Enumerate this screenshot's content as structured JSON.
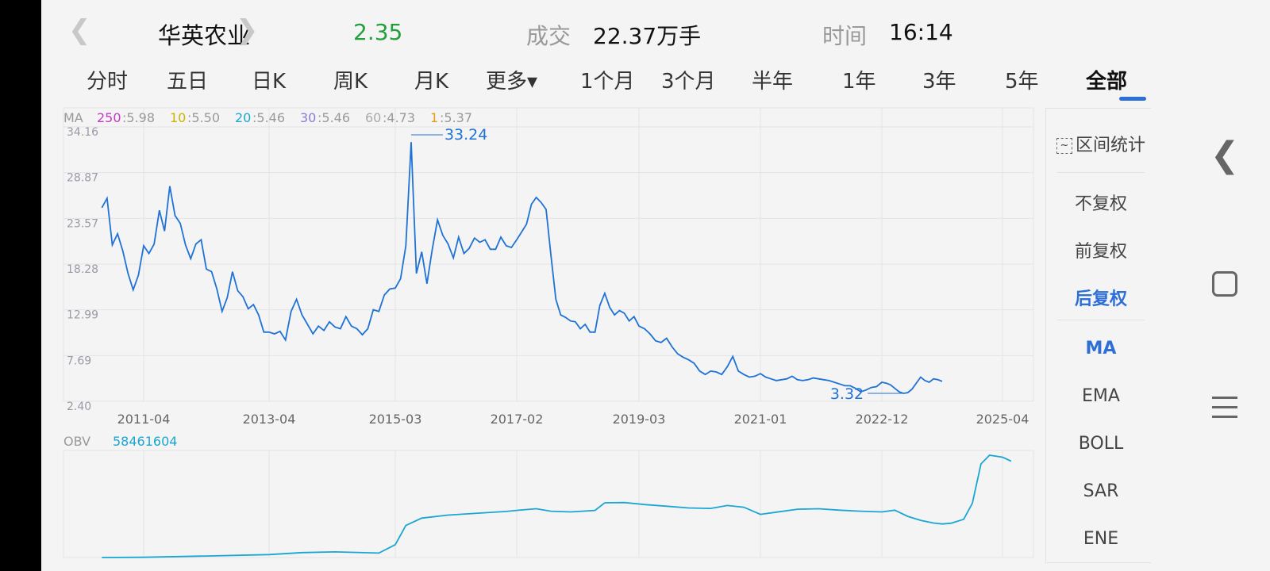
{
  "header": {
    "prev_icon": "chevron-left-icon",
    "name": "华英农业",
    "next_icon": "chevron-right-icon",
    "price": "2.35",
    "volume_label": "成交",
    "volume_value": "22.37万手",
    "time_label": "时间",
    "time_value": "16:14",
    "close_icon": "close-icon"
  },
  "period_tabs": [
    "分时",
    "五日",
    "日K",
    "周K",
    "月K",
    "更多▾",
    "1个月",
    "3个月",
    "半年",
    "1年",
    "3年",
    "5年",
    "全部"
  ],
  "active_tab": "全部",
  "side_panel": {
    "range_stats": "区间统计",
    "adjust_options": [
      "不复权",
      "前复权",
      "后复权"
    ],
    "active_adjust": "后复权",
    "indicators": [
      "MA",
      "EMA",
      "BOLL",
      "SAR",
      "ENE"
    ],
    "active_indicator": "MA"
  },
  "chart_data": [
    {
      "type": "line",
      "ma_legend": [
        {
          "label": "MA",
          "color": "#999999"
        },
        {
          "label": "250",
          "value": "5.98",
          "color": "#c43ac4"
        },
        {
          "label": "10",
          "value": "5.50",
          "color": "#c9b400"
        },
        {
          "label": "20",
          "value": "5.46",
          "color": "#1aa6d4"
        },
        {
          "label": "30",
          "value": "5.46",
          "color": "#8c7bd6"
        },
        {
          "label": "60",
          "value": "4.73",
          "color": "#aaaaaa"
        },
        {
          "label": "1",
          "value": "5.37",
          "color": "#e79a1e"
        }
      ],
      "y_ticks": [
        "34.16",
        "28.87",
        "23.57",
        "18.28",
        "12.99",
        "7.69",
        "2.40"
      ],
      "ylim": [
        2.4,
        34.16
      ],
      "x_ticks": [
        "2011-04",
        "2013-04",
        "2015-03",
        "2017-02",
        "2019-03",
        "2021-01",
        "2022-12",
        "2025-04"
      ],
      "annotations": [
        {
          "label": "33.24",
          "kind": "max"
        },
        {
          "label": "3.32",
          "kind": "min"
        }
      ],
      "series": [
        {
          "color": "#1f72d6",
          "points": [
            [
              "2010-08",
              24.8
            ],
            [
              "2010-09",
              25.9
            ],
            [
              "2010-10",
              20.5
            ],
            [
              "2010-11",
              21.8
            ],
            [
              "2010-12",
              19.8
            ],
            [
              "2011-01",
              17.2
            ],
            [
              "2011-02",
              15.3
            ],
            [
              "2011-03",
              17.0
            ],
            [
              "2011-04",
              20.4
            ],
            [
              "2011-05",
              19.5
            ],
            [
              "2011-06",
              20.6
            ],
            [
              "2011-07",
              24.5
            ],
            [
              "2011-08",
              22.1
            ],
            [
              "2011-09",
              27.3
            ],
            [
              "2011-10",
              23.9
            ],
            [
              "2011-11",
              23.0
            ],
            [
              "2011-12",
              20.5
            ],
            [
              "2012-01",
              18.9
            ],
            [
              "2012-02",
              20.6
            ],
            [
              "2012-03",
              21.1
            ],
            [
              "2012-04",
              17.7
            ],
            [
              "2012-05",
              17.4
            ],
            [
              "2012-06",
              15.4
            ],
            [
              "2012-07",
              12.8
            ],
            [
              "2012-08",
              14.4
            ],
            [
              "2012-09",
              17.4
            ],
            [
              "2012-10",
              15.2
            ],
            [
              "2012-11",
              14.5
            ],
            [
              "2012-12",
              13.1
            ],
            [
              "2013-01",
              13.6
            ],
            [
              "2013-02",
              12.4
            ],
            [
              "2013-03",
              10.4
            ],
            [
              "2013-04",
              10.4
            ],
            [
              "2013-05",
              10.2
            ],
            [
              "2013-06",
              10.5
            ],
            [
              "2013-07",
              9.5
            ],
            [
              "2013-08",
              12.8
            ],
            [
              "2013-09",
              14.2
            ],
            [
              "2013-10",
              12.4
            ],
            [
              "2013-11",
              11.3
            ],
            [
              "2013-12",
              10.2
            ],
            [
              "2014-01",
              11.1
            ],
            [
              "2014-02",
              10.6
            ],
            [
              "2014-03",
              11.6
            ],
            [
              "2014-04",
              11.0
            ],
            [
              "2014-05",
              10.8
            ],
            [
              "2014-06",
              12.2
            ],
            [
              "2014-07",
              11.1
            ],
            [
              "2014-08",
              10.8
            ],
            [
              "2014-09",
              10.1
            ],
            [
              "2014-10",
              10.8
            ],
            [
              "2014-11",
              13.0
            ],
            [
              "2014-12",
              12.8
            ],
            [
              "2015-01",
              14.7
            ],
            [
              "2015-02",
              15.4
            ],
            [
              "2015-03",
              15.5
            ],
            [
              "2015-04",
              16.6
            ],
            [
              "2015-05",
              20.4
            ],
            [
              "2015-06",
              32.4
            ],
            [
              "2015-07",
              17.2
            ],
            [
              "2015-08",
              19.7
            ],
            [
              "2015-09",
              16.0
            ],
            [
              "2015-10",
              20.0
            ],
            [
              "2015-11",
              23.4
            ],
            [
              "2015-12",
              21.6
            ],
            [
              "2016-01",
              20.6
            ],
            [
              "2016-02",
              19.0
            ],
            [
              "2016-03",
              21.4
            ],
            [
              "2016-04",
              19.5
            ],
            [
              "2016-05",
              20.1
            ],
            [
              "2016-06",
              21.3
            ],
            [
              "2016-07",
              20.8
            ],
            [
              "2016-08",
              21.1
            ],
            [
              "2016-09",
              20.0
            ],
            [
              "2016-10",
              20.0
            ],
            [
              "2016-11",
              21.4
            ],
            [
              "2016-12",
              20.4
            ],
            [
              "2017-01",
              20.2
            ],
            [
              "2017-02",
              21.1
            ],
            [
              "2017-03",
              22.0
            ],
            [
              "2017-04",
              22.9
            ],
            [
              "2017-05",
              25.2
            ],
            [
              "2017-06",
              26.0
            ],
            [
              "2017-07",
              25.4
            ],
            [
              "2017-08",
              24.6
            ],
            [
              "2017-09",
              19.3
            ],
            [
              "2017-10",
              14.2
            ],
            [
              "2017-11",
              12.4
            ],
            [
              "2017-12",
              12.1
            ],
            [
              "2018-01",
              11.7
            ],
            [
              "2018-02",
              11.6
            ],
            [
              "2018-03",
              10.8
            ],
            [
              "2018-04",
              11.3
            ],
            [
              "2018-05",
              10.4
            ],
            [
              "2018-06",
              10.4
            ],
            [
              "2018-07",
              13.5
            ],
            [
              "2018-08",
              14.9
            ],
            [
              "2018-09",
              13.3
            ],
            [
              "2018-10",
              12.4
            ],
            [
              "2018-11",
              12.9
            ],
            [
              "2018-12",
              12.6
            ],
            [
              "2019-01",
              11.7
            ],
            [
              "2019-02",
              12.2
            ],
            [
              "2019-03",
              11.1
            ],
            [
              "2019-04",
              10.8
            ],
            [
              "2019-05",
              10.2
            ],
            [
              "2019-06",
              9.4
            ],
            [
              "2019-07",
              9.2
            ],
            [
              "2019-08",
              9.7
            ],
            [
              "2019-09",
              8.7
            ],
            [
              "2019-10",
              7.9
            ],
            [
              "2019-11",
              7.5
            ],
            [
              "2019-12",
              7.2
            ],
            [
              "2020-01",
              6.8
            ],
            [
              "2020-02",
              5.9
            ],
            [
              "2020-03",
              5.5
            ],
            [
              "2020-04",
              5.9
            ],
            [
              "2020-05",
              5.8
            ],
            [
              "2020-06",
              5.5
            ],
            [
              "2020-07",
              6.4
            ],
            [
              "2020-08",
              7.6
            ],
            [
              "2020-09",
              5.9
            ],
            [
              "2020-10",
              5.5
            ],
            [
              "2020-11",
              5.2
            ],
            [
              "2020-12",
              5.3
            ],
            [
              "2021-01",
              5.6
            ],
            [
              "2021-02",
              5.2
            ],
            [
              "2021-03",
              5.0
            ],
            [
              "2021-04",
              4.8
            ],
            [
              "2021-05",
              4.9
            ],
            [
              "2021-06",
              5.0
            ],
            [
              "2021-07",
              5.3
            ],
            [
              "2021-08",
              4.9
            ],
            [
              "2021-09",
              4.8
            ],
            [
              "2021-10",
              4.9
            ],
            [
              "2021-11",
              5.1
            ],
            [
              "2021-12",
              5.0
            ],
            [
              "2022-01",
              4.9
            ],
            [
              "2022-02",
              4.8
            ],
            [
              "2022-03",
              4.6
            ],
            [
              "2022-04",
              4.4
            ],
            [
              "2022-05",
              4.2
            ],
            [
              "2022-06",
              4.2
            ],
            [
              "2022-07",
              3.9
            ],
            [
              "2022-08",
              3.5
            ],
            [
              "2022-09",
              3.7
            ],
            [
              "2022-10",
              4.0
            ],
            [
              "2022-11",
              4.1
            ],
            [
              "2022-12",
              4.6
            ],
            [
              "2023-01",
              4.5
            ],
            [
              "2023-02",
              4.3
            ],
            [
              "2023-03",
              3.9
            ],
            [
              "2023-04",
              3.5
            ],
            [
              "2023-05",
              3.32
            ],
            [
              "2023-06",
              3.4
            ],
            [
              "2023-07",
              3.8
            ],
            [
              "2023-08",
              4.5
            ],
            [
              "2023-09",
              5.2
            ],
            [
              "2023-10",
              4.8
            ],
            [
              "2023-11",
              4.6
            ],
            [
              "2023-12",
              5.0
            ],
            [
              "2024-01",
              4.9
            ],
            [
              "2024-02",
              4.7
            ]
          ]
        }
      ]
    },
    {
      "type": "line",
      "indicator": "OBV",
      "value": "58461604",
      "series": [
        {
          "color": "#1aa6d4",
          "points": [
            [
              "2010-08",
              0.0
            ],
            [
              "2011-04",
              0.1
            ],
            [
              "2012-04",
              0.6
            ],
            [
              "2013-04",
              1.2
            ],
            [
              "2013-10",
              2.0
            ],
            [
              "2014-04",
              2.3
            ],
            [
              "2014-12",
              1.8
            ],
            [
              "2015-03",
              5.2
            ],
            [
              "2015-05",
              13.0
            ],
            [
              "2015-08",
              16.0
            ],
            [
              "2016-01",
              17.2
            ],
            [
              "2016-06",
              17.9
            ],
            [
              "2016-12",
              18.7
            ],
            [
              "2017-03",
              19.3
            ],
            [
              "2017-06",
              19.8
            ],
            [
              "2017-09",
              18.8
            ],
            [
              "2018-01",
              18.5
            ],
            [
              "2018-06",
              19.1
            ],
            [
              "2018-08",
              22.2
            ],
            [
              "2018-12",
              22.3
            ],
            [
              "2019-04",
              21.5
            ],
            [
              "2019-08",
              20.8
            ],
            [
              "2019-12",
              20.1
            ],
            [
              "2020-04",
              19.9
            ],
            [
              "2020-07",
              21.1
            ],
            [
              "2020-10",
              20.4
            ],
            [
              "2021-01",
              17.5
            ],
            [
              "2021-04",
              18.4
            ],
            [
              "2021-08",
              19.6
            ],
            [
              "2021-12",
              19.8
            ],
            [
              "2022-04",
              19.2
            ],
            [
              "2022-08",
              18.8
            ],
            [
              "2022-12",
              18.5
            ],
            [
              "2023-03",
              19.2
            ],
            [
              "2023-06",
              16.7
            ],
            [
              "2023-09",
              15.1
            ],
            [
              "2023-12",
              14.0
            ],
            [
              "2024-02",
              13.6
            ],
            [
              "2024-04",
              13.9
            ],
            [
              "2024-07",
              15.5
            ],
            [
              "2024-09",
              22.0
            ],
            [
              "2024-11",
              38.0
            ],
            [
              "2025-01",
              41.5
            ],
            [
              "2025-04",
              40.7
            ],
            [
              "2025-06",
              39.1
            ]
          ]
        }
      ]
    }
  ]
}
